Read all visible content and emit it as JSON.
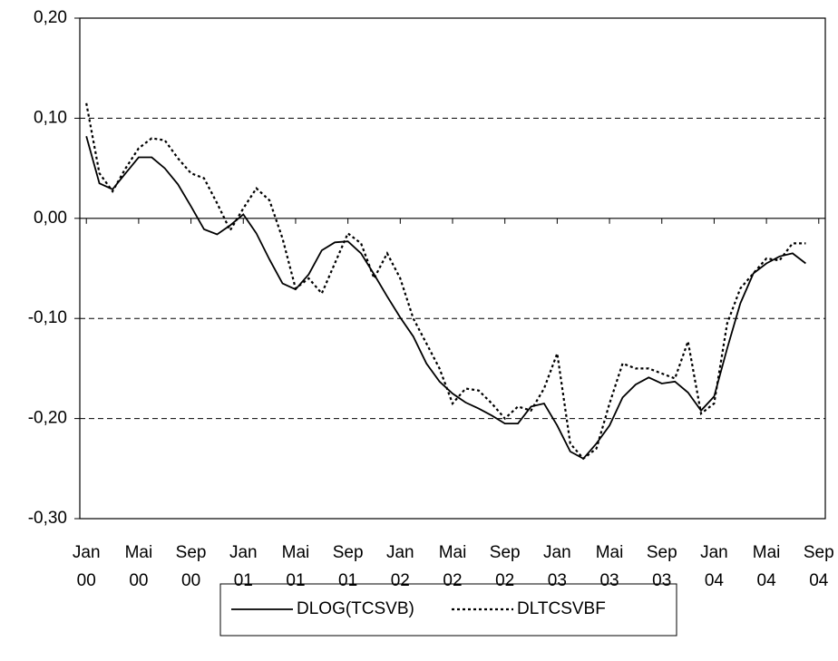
{
  "chart_data": {
    "type": "line",
    "categories": [
      "Jan 00",
      null,
      null,
      null,
      "Mai 00",
      null,
      null,
      null,
      "Sep 00",
      null,
      null,
      null,
      "Jan 01",
      null,
      null,
      null,
      "Mai 01",
      null,
      null,
      null,
      "Sep 01",
      null,
      null,
      null,
      "Jan 02",
      null,
      null,
      null,
      "Mai 02",
      null,
      null,
      null,
      "Sep 02",
      null,
      null,
      null,
      "Jan 03",
      null,
      null,
      null,
      "Mai 03",
      null,
      null,
      null,
      "Sep 03",
      null,
      null,
      null,
      "Jan 04",
      null,
      null,
      null,
      "Mai 04",
      null,
      null,
      null,
      "Sep 04"
    ],
    "series": [
      {
        "name": "DLOG(TCSVB)",
        "color": "#000000",
        "dash": "solid",
        "values": [
          0.082,
          0.035,
          0.029,
          0.045,
          0.061,
          0.061,
          0.05,
          0.034,
          0.012,
          -0.011,
          -0.016,
          -0.007,
          0.004,
          -0.015,
          -0.041,
          -0.065,
          -0.071,
          -0.056,
          -0.032,
          -0.024,
          -0.023,
          -0.035,
          -0.056,
          -0.078,
          -0.099,
          -0.118,
          -0.145,
          -0.163,
          -0.175,
          -0.184,
          -0.19,
          -0.197,
          -0.205,
          -0.205,
          -0.188,
          -0.185,
          -0.207,
          -0.233,
          -0.24,
          -0.225,
          -0.207,
          -0.179,
          -0.166,
          -0.159,
          -0.165,
          -0.163,
          -0.174,
          -0.192,
          -0.178,
          -0.13,
          -0.085,
          -0.055,
          -0.045,
          -0.038,
          -0.035,
          -0.045,
          null
        ]
      },
      {
        "name": "DLTCSVBF",
        "color": "#000000",
        "dash": "dotted",
        "values": [
          0.115,
          0.045,
          0.027,
          0.05,
          0.07,
          0.08,
          0.078,
          0.06,
          0.045,
          0.04,
          0.015,
          -0.012,
          0.01,
          0.03,
          0.018,
          -0.02,
          -0.07,
          -0.06,
          -0.075,
          -0.045,
          -0.015,
          -0.025,
          -0.06,
          -0.035,
          -0.06,
          -0.1,
          -0.125,
          -0.15,
          -0.185,
          -0.17,
          -0.172,
          -0.185,
          -0.2,
          -0.188,
          -0.192,
          -0.17,
          -0.135,
          -0.225,
          -0.24,
          -0.23,
          -0.185,
          -0.145,
          -0.15,
          -0.15,
          -0.155,
          -0.16,
          -0.123,
          -0.195,
          -0.185,
          -0.105,
          -0.07,
          -0.055,
          -0.04,
          -0.042,
          -0.025,
          -0.025,
          null
        ]
      }
    ],
    "ylim": [
      -0.3,
      0.2
    ],
    "yticks": [
      {
        "value": -0.3,
        "label": "-0,30"
      },
      {
        "value": -0.2,
        "label": "-0,20"
      },
      {
        "value": -0.1,
        "label": "-0,10"
      },
      {
        "value": 0,
        "label": "0,00"
      },
      {
        "value": 0.1,
        "label": "0,10"
      },
      {
        "value": 0.2,
        "label": "0,20"
      }
    ],
    "grid": true,
    "legend": "bottom"
  }
}
